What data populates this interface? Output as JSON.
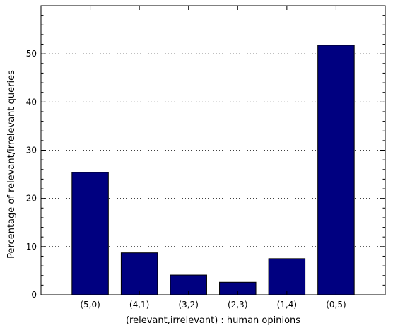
{
  "chart_data": {
    "type": "bar",
    "title": "",
    "xlabel": "(relevant,irrelevant) : human opinions",
    "ylabel": "Percentage of relevant/irrelevant queries",
    "categories": [
      "(5,0)",
      "(4,1)",
      "(3,2)",
      "(2,3)",
      "(1,4)",
      "(0,5)"
    ],
    "values": [
      25.4,
      8.7,
      4.1,
      2.6,
      7.5,
      51.8
    ],
    "ylim": [
      0,
      60
    ],
    "yticks": [
      0,
      10,
      20,
      30,
      40,
      50
    ],
    "y_minor_step": 2,
    "grid": "horizontal dotted",
    "legend": "none",
    "bar_color": "#000080"
  }
}
